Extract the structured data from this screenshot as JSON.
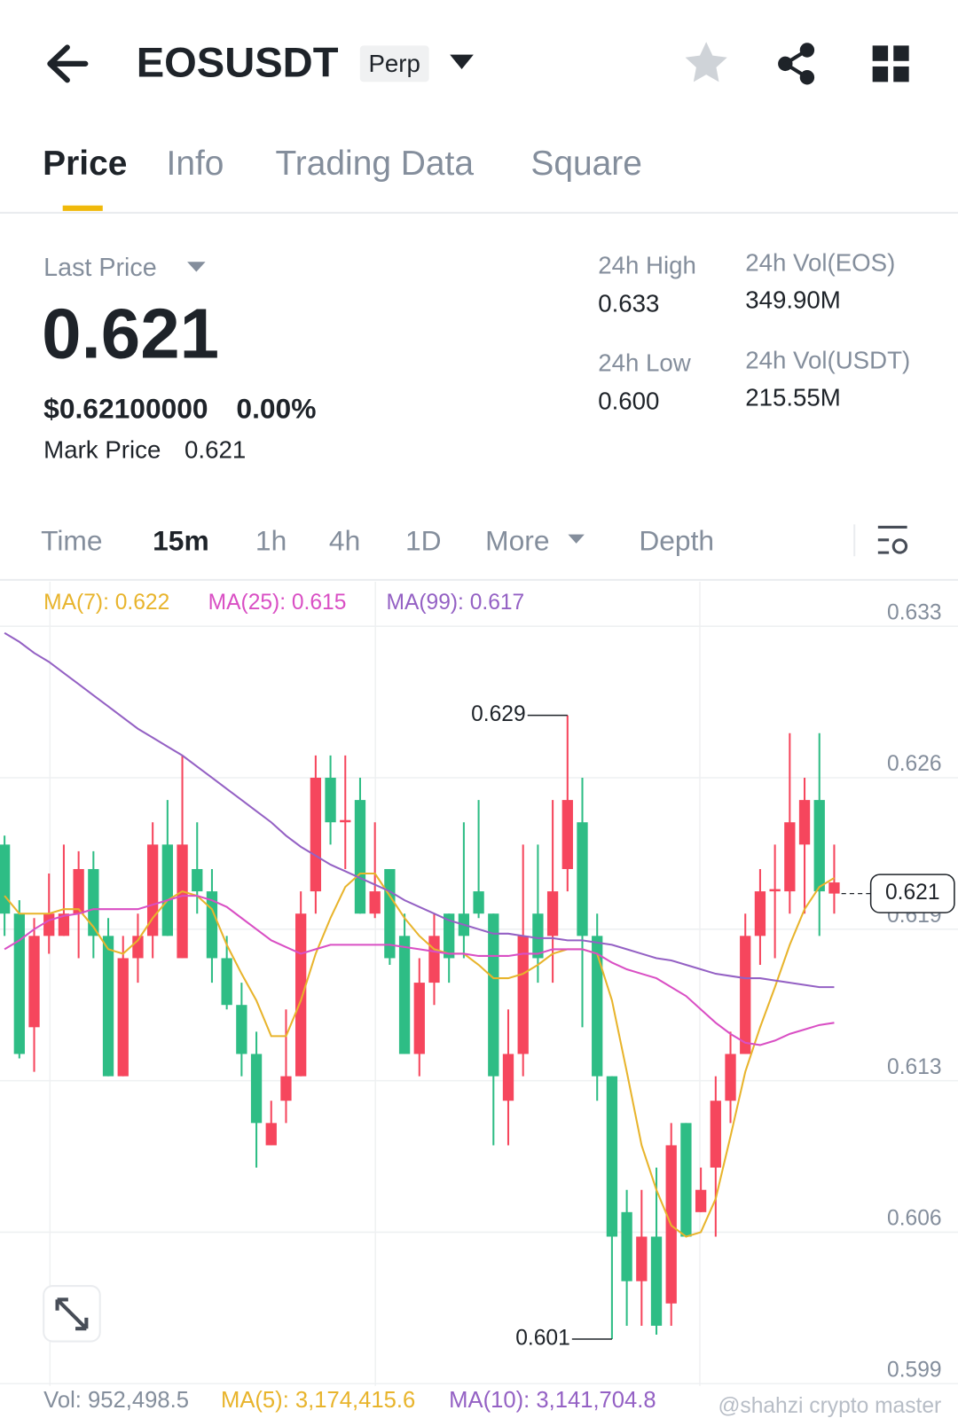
{
  "header": {
    "symbol": "EOSUSDT",
    "badge": "Perp"
  },
  "tabs": [
    "Price",
    "Info",
    "Trading Data",
    "Square"
  ],
  "ticker": {
    "last_price_label": "Last Price",
    "last_price": "0.621",
    "usd_price": "$0.62100000",
    "change": "0.00%",
    "mark_price_label": "Mark Price",
    "mark_price": "0.621",
    "stats": [
      {
        "label": "24h High",
        "value": "0.633"
      },
      {
        "label": "24h Vol(EOS)",
        "value": "349.90M"
      },
      {
        "label": "24h Low",
        "value": "0.600"
      },
      {
        "label": "24h Vol(USDT)",
        "value": "215.55M"
      }
    ]
  },
  "intervals": [
    "Time",
    "15m",
    "1h",
    "4h",
    "1D",
    "More",
    "Depth"
  ],
  "chart_data": {
    "type": "candlestick",
    "ylim": [
      0.5989,
      0.635
    ],
    "yticks": [
      {
        "value": 0.633,
        "label": "0.633"
      },
      {
        "value": 0.6262,
        "label": "0.626"
      },
      {
        "value": 0.6194,
        "label": "0.619"
      },
      {
        "value": 0.6126,
        "label": "0.613"
      },
      {
        "value": 0.6058,
        "label": "0.606"
      },
      {
        "value": 0.599,
        "label": "0.599"
      }
    ],
    "grid": true,
    "up_color": "#2ebd85",
    "down_color": "#f6465d",
    "open": [
      0.6201,
      0.6138,
      0.6191,
      0.6201,
      0.6201,
      0.6221,
      0.6191,
      0.6128,
      0.6181,
      0.6191,
      0.6232,
      0.6191,
      0.6232,
      0.6211,
      0.6181,
      0.616,
      0.6138,
      0.6107,
      0.6107,
      0.6128,
      0.6201,
      0.6262,
      0.6242,
      0.6243,
      0.6201,
      0.6211,
      0.6181,
      0.6138,
      0.617,
      0.6191,
      0.6181,
      0.6191,
      0.6201,
      0.6128,
      0.6138,
      0.6191,
      0.6181,
      0.6211,
      0.6252,
      0.6191,
      0.6128,
      0.6056,
      0.6036,
      0.6056,
      0.6016,
      0.6097,
      0.6056,
      0.6077,
      0.6117,
      0.6138,
      0.6191,
      0.6211,
      0.6212,
      0.6242,
      0.6252,
      0.6211,
      0.6215
    ],
    "high": [
      0.6236,
      0.6207,
      0.6199,
      0.6219,
      0.6232,
      0.6229,
      0.6229,
      0.6199,
      0.6191,
      0.6201,
      0.6242,
      0.6252,
      0.6272,
      0.6242,
      0.6221,
      0.6191,
      0.617,
      0.6148,
      0.6117,
      0.6158,
      0.6211,
      0.6272,
      0.6272,
      0.6272,
      0.6262,
      0.6242,
      0.6221,
      0.6201,
      0.6181,
      0.6201,
      0.6201,
      0.6242,
      0.6252,
      0.6201,
      0.6158,
      0.6232,
      0.6232,
      0.6252,
      0.629,
      0.6262,
      0.6201,
      0.6128,
      0.6077,
      0.6077,
      0.6087,
      0.6107,
      0.6107,
      0.6087,
      0.6128,
      0.6148,
      0.6201,
      0.6221,
      0.6232,
      0.6282,
      0.6262,
      0.6282,
      0.6232
    ],
    "low": [
      0.6191,
      0.6136,
      0.613,
      0.6183,
      0.6191,
      0.6181,
      0.6181,
      0.6128,
      0.6128,
      0.617,
      0.6181,
      0.6191,
      0.6181,
      0.6201,
      0.617,
      0.6158,
      0.6128,
      0.6087,
      0.6097,
      0.6107,
      0.6128,
      0.6201,
      0.6232,
      0.6221,
      0.6201,
      0.6199,
      0.6178,
      0.6138,
      0.6128,
      0.616,
      0.617,
      0.6181,
      0.6199,
      0.6097,
      0.6097,
      0.6128,
      0.617,
      0.617,
      0.6211,
      0.615,
      0.6117,
      0.601,
      0.6016,
      0.6016,
      0.6012,
      0.6016,
      0.6056,
      0.6067,
      0.6056,
      0.6107,
      0.6138,
      0.6178,
      0.6181,
      0.6201,
      0.6201,
      0.6191,
      0.6201
    ],
    "close": [
      0.6232,
      0.6201,
      0.615,
      0.6191,
      0.6191,
      0.6201,
      0.6221,
      0.6191,
      0.6128,
      0.6181,
      0.6191,
      0.6232,
      0.6181,
      0.6221,
      0.6211,
      0.6181,
      0.616,
      0.6138,
      0.6097,
      0.6117,
      0.6128,
      0.6211,
      0.6262,
      0.6242,
      0.6252,
      0.6201,
      0.6221,
      0.6191,
      0.6138,
      0.617,
      0.6201,
      0.6201,
      0.6211,
      0.6201,
      0.6117,
      0.6138,
      0.6201,
      0.6191,
      0.6221,
      0.6242,
      0.6191,
      0.6128,
      0.6067,
      0.6036,
      0.6056,
      0.6026,
      0.6107,
      0.6067,
      0.6087,
      0.6117,
      0.6138,
      0.6191,
      0.6211,
      0.6211,
      0.6232,
      0.6252,
      0.621
    ],
    "series": [
      {
        "legend": "MA(7): 0.622",
        "color": "#e8b42c",
        "values": [
          0.6209,
          0.6201,
          0.6201,
          0.6201,
          0.6203,
          0.6203,
          0.6195,
          0.6185,
          0.6183,
          0.6189,
          0.6199,
          0.6207,
          0.6211,
          0.6209,
          0.6203,
          0.6187,
          0.6174,
          0.6162,
          0.6146,
          0.6146,
          0.6162,
          0.6183,
          0.6199,
          0.6213,
          0.6219,
          0.6219,
          0.6209,
          0.6199,
          0.6191,
          0.6185,
          0.6183,
          0.6183,
          0.6178,
          0.6172,
          0.6172,
          0.6174,
          0.6178,
          0.6183,
          0.6185,
          0.6185,
          0.6183,
          0.6162,
          0.613,
          0.6097,
          0.6077,
          0.6061,
          0.6056,
          0.6058,
          0.6073,
          0.6101,
          0.613,
          0.615,
          0.6168,
          0.6187,
          0.6203,
          0.6213,
          0.6217
        ]
      },
      {
        "legend": "MA(25): 0.615",
        "color": "#d94fc4",
        "values": [
          0.6185,
          0.6189,
          0.6194,
          0.6198,
          0.62,
          0.6201,
          0.6203,
          0.6203,
          0.6203,
          0.6203,
          0.6205,
          0.6207,
          0.6209,
          0.6209,
          0.6207,
          0.6204,
          0.6199,
          0.6194,
          0.6189,
          0.6186,
          0.6183,
          0.6185,
          0.6187,
          0.6187,
          0.6187,
          0.6187,
          0.6187,
          0.6186,
          0.6185,
          0.6184,
          0.6183,
          0.6183,
          0.6182,
          0.6182,
          0.6182,
          0.6183,
          0.6183,
          0.6185,
          0.6185,
          0.6185,
          0.6183,
          0.6179,
          0.6176,
          0.6174,
          0.6172,
          0.6168,
          0.6164,
          0.6158,
          0.6152,
          0.6147,
          0.6143,
          0.6142,
          0.6144,
          0.6147,
          0.6149,
          0.6151,
          0.6152
        ]
      },
      {
        "legend": "MA(99): 0.617",
        "color": "#9461c4",
        "values": [
          0.6327,
          0.6323,
          0.6318,
          0.6314,
          0.6309,
          0.6304,
          0.6299,
          0.6294,
          0.6289,
          0.6284,
          0.628,
          0.6276,
          0.6272,
          0.6267,
          0.6262,
          0.6257,
          0.6252,
          0.6247,
          0.6242,
          0.6236,
          0.6231,
          0.6227,
          0.6223,
          0.622,
          0.6217,
          0.6214,
          0.6211,
          0.6207,
          0.6204,
          0.6201,
          0.6198,
          0.6196,
          0.6194,
          0.6192,
          0.6192,
          0.6191,
          0.619,
          0.619,
          0.6189,
          0.6189,
          0.6188,
          0.6187,
          0.6185,
          0.6183,
          0.6181,
          0.618,
          0.6178,
          0.6176,
          0.6174,
          0.6173,
          0.6172,
          0.6172,
          0.6171,
          0.617,
          0.6169,
          0.6168,
          0.6168
        ]
      }
    ],
    "high_label": "0.629",
    "low_label": "0.601",
    "price_tag": "0.621"
  },
  "volume": {
    "vol": "Vol: 952,498.5",
    "ma5": "MA(5): 3,174,415.6",
    "ma10": "MA(10): 3,141,704.8"
  },
  "watermark": "@shahzi crypto master"
}
